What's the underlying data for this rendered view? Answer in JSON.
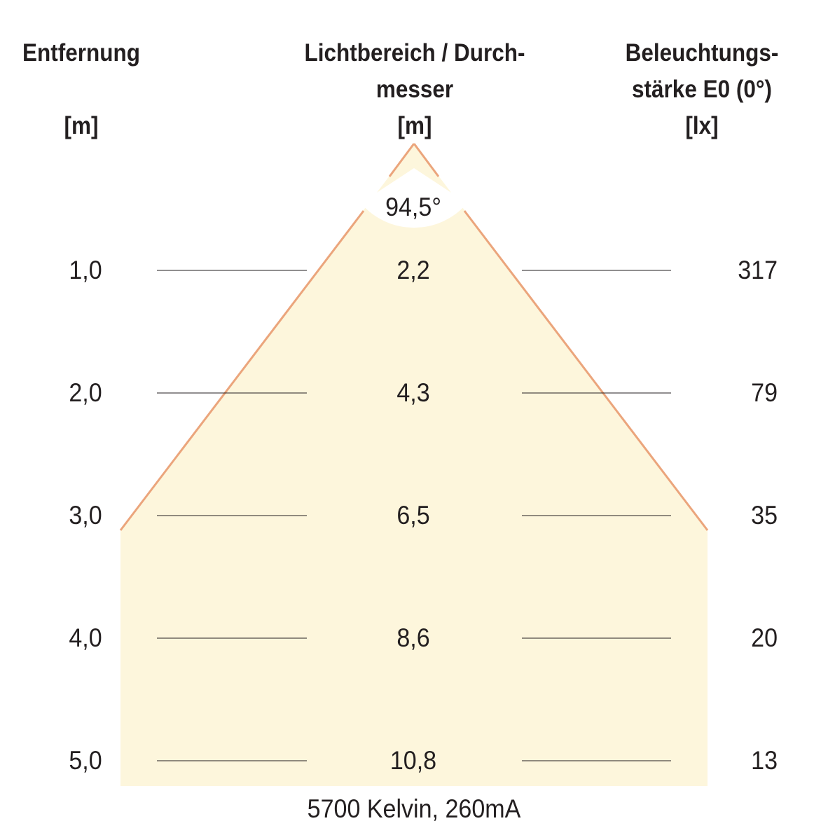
{
  "headers": {
    "distance": {
      "line1": "Entfernung",
      "unit": "[m]"
    },
    "diameter": {
      "line1": "Lichtbereich / Durch-",
      "line2": "messer",
      "unit": "[m]"
    },
    "illuminance": {
      "line1": "Beleuchtungs-",
      "line2": "stärke E0 (0°)",
      "unit": "[lx]"
    }
  },
  "beam_angle": "94,5°",
  "rows": [
    {
      "distance": "1,0",
      "diameter": "2,2",
      "illuminance": "317"
    },
    {
      "distance": "2,0",
      "diameter": "4,3",
      "illuminance": "79"
    },
    {
      "distance": "3,0",
      "diameter": "6,5",
      "illuminance": "35"
    },
    {
      "distance": "4,0",
      "diameter": "8,6",
      "illuminance": "20"
    },
    {
      "distance": "5,0",
      "diameter": "10,8",
      "illuminance": "13"
    }
  ],
  "footer": "5700 Kelvin, 260mA",
  "colors": {
    "beam_fill": "#fdf6dc",
    "beam_edge": "#eba57c",
    "text": "#231f20",
    "guide_line": "#231f20"
  }
}
